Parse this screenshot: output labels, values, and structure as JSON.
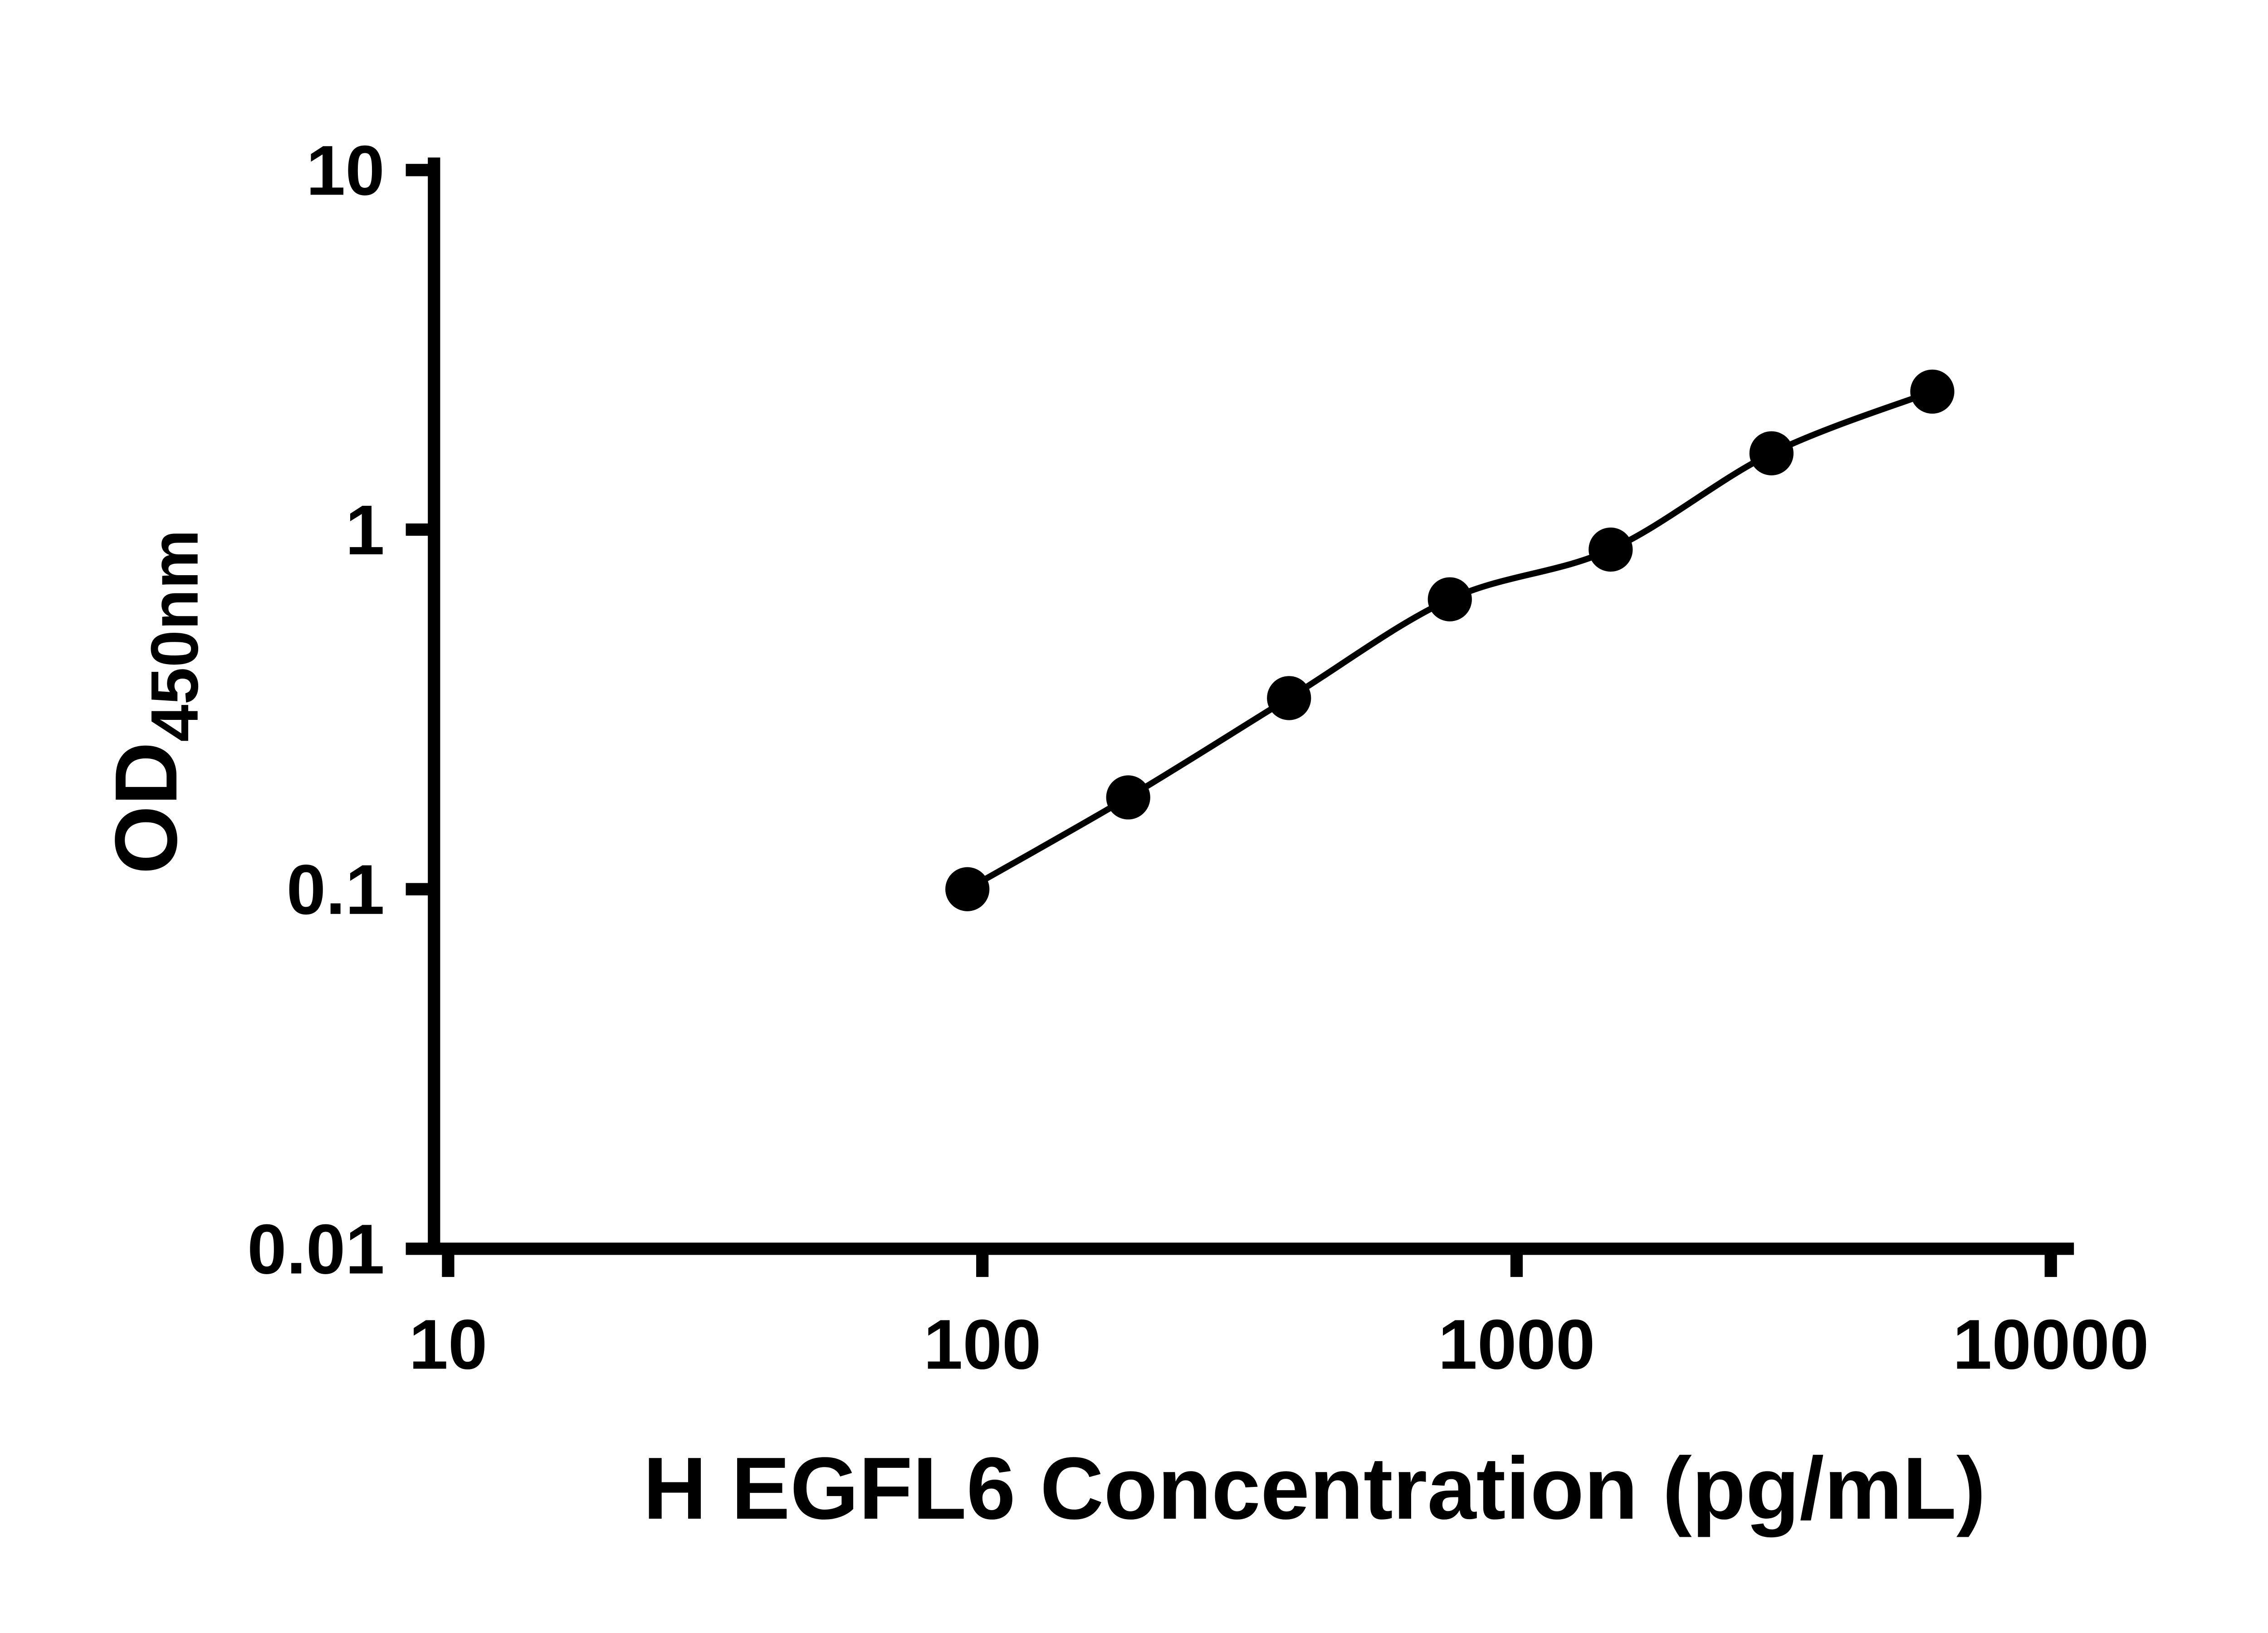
{
  "chart_data": {
    "type": "scatter",
    "title": "",
    "xlabel": "H EGFL6 Concentration (pg/mL)",
    "ylabel_main": "OD",
    "ylabel_sub": "450nm",
    "x": [
      93.75,
      187.5,
      375,
      750,
      1500,
      3000,
      6000
    ],
    "y": [
      0.1,
      0.18,
      0.34,
      0.64,
      0.88,
      1.63,
      2.42
    ],
    "x_scale": "log",
    "y_scale": "log",
    "xlim": [
      10,
      10000
    ],
    "ylim": [
      0.01,
      10
    ],
    "x_ticks": [
      10,
      100,
      1000,
      10000
    ],
    "x_tick_labels": [
      "10",
      "100",
      "1000",
      "10000"
    ],
    "y_ticks": [
      0.01,
      0.1,
      1,
      10
    ],
    "y_tick_labels": [
      "0.01",
      "0.1",
      "1",
      "10"
    ],
    "grid": false,
    "legend": false,
    "line_color": "#000000",
    "marker_color": "#000000",
    "background": "#ffffff"
  }
}
